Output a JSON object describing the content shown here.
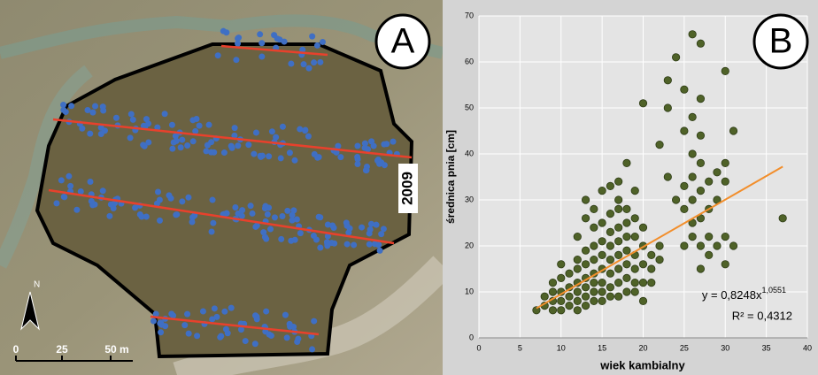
{
  "panel_a": {
    "label": "A",
    "year": "2009",
    "north": "N",
    "scale_labels": [
      "0",
      "25",
      "50 m"
    ]
  },
  "chart_data": {
    "type": "scatter",
    "panel_label": "B",
    "x_label": "wiek kambialny",
    "y_label": "średnica pnia [cm]",
    "x": [
      7,
      8,
      8,
      9,
      9,
      9,
      9,
      10,
      10,
      10,
      10,
      10,
      11,
      11,
      11,
      11,
      12,
      12,
      12,
      12,
      12,
      12,
      12,
      13,
      13,
      13,
      13,
      13,
      13,
      13,
      13,
      14,
      14,
      14,
      14,
      14,
      14,
      14,
      14,
      15,
      15,
      15,
      15,
      15,
      15,
      15,
      15,
      16,
      16,
      16,
      16,
      16,
      16,
      16,
      16,
      17,
      17,
      17,
      17,
      17,
      17,
      17,
      17,
      17,
      18,
      18,
      18,
      18,
      18,
      18,
      18,
      18,
      19,
      19,
      19,
      19,
      19,
      19,
      19,
      20,
      20,
      20,
      20,
      20,
      20,
      21,
      21,
      21,
      22,
      22,
      22,
      23,
      23,
      23,
      24,
      24,
      25,
      25,
      25,
      25,
      25,
      26,
      26,
      26,
      26,
      26,
      26,
      26,
      27,
      27,
      27,
      27,
      27,
      27,
      27,
      27,
      28,
      28,
      28,
      28,
      29,
      29,
      29,
      30,
      30,
      30,
      30,
      30,
      31,
      31,
      37
    ],
    "y": [
      6,
      7,
      9,
      6,
      8,
      10,
      12,
      6,
      8,
      10,
      13,
      16,
      7,
      9,
      11,
      14,
      6,
      8,
      10,
      12,
      15,
      17,
      22,
      7,
      9,
      11,
      13,
      16,
      19,
      26,
      30,
      8,
      10,
      12,
      14,
      17,
      20,
      24,
      28,
      8,
      10,
      12,
      15,
      18,
      21,
      25,
      32,
      9,
      11,
      14,
      17,
      20,
      23,
      27,
      33,
      9,
      12,
      15,
      18,
      21,
      24,
      28,
      34,
      30,
      10,
      13,
      16,
      19,
      22,
      25,
      28,
      38,
      10,
      12,
      15,
      18,
      22,
      26,
      32,
      8,
      12,
      16,
      20,
      24,
      51,
      12,
      15,
      18,
      17,
      20,
      42,
      35,
      50,
      56,
      30,
      61,
      20,
      28,
      33,
      54,
      45,
      22,
      25,
      30,
      35,
      40,
      48,
      66,
      15,
      20,
      26,
      32,
      38,
      44,
      52,
      64,
      18,
      22,
      28,
      34,
      20,
      30,
      36,
      16,
      22,
      34,
      38,
      58,
      20,
      45,
      26
    ],
    "color": "#4f6228",
    "xlim": [
      0,
      40
    ],
    "xticks": [
      0,
      5,
      10,
      15,
      20,
      25,
      30,
      35,
      40
    ],
    "ylim": [
      0,
      70
    ],
    "yticks": [
      0,
      10,
      20,
      30,
      40,
      50,
      60,
      70
    ],
    "grid": true,
    "trendline": {
      "x": [
        7,
        37
      ],
      "y": [
        6.43,
        37.24
      ],
      "color": "#f28e2b"
    },
    "equation": "y = 0,8248x",
    "exponent": "1,0551",
    "r_squared": "R² = 0,4312"
  }
}
